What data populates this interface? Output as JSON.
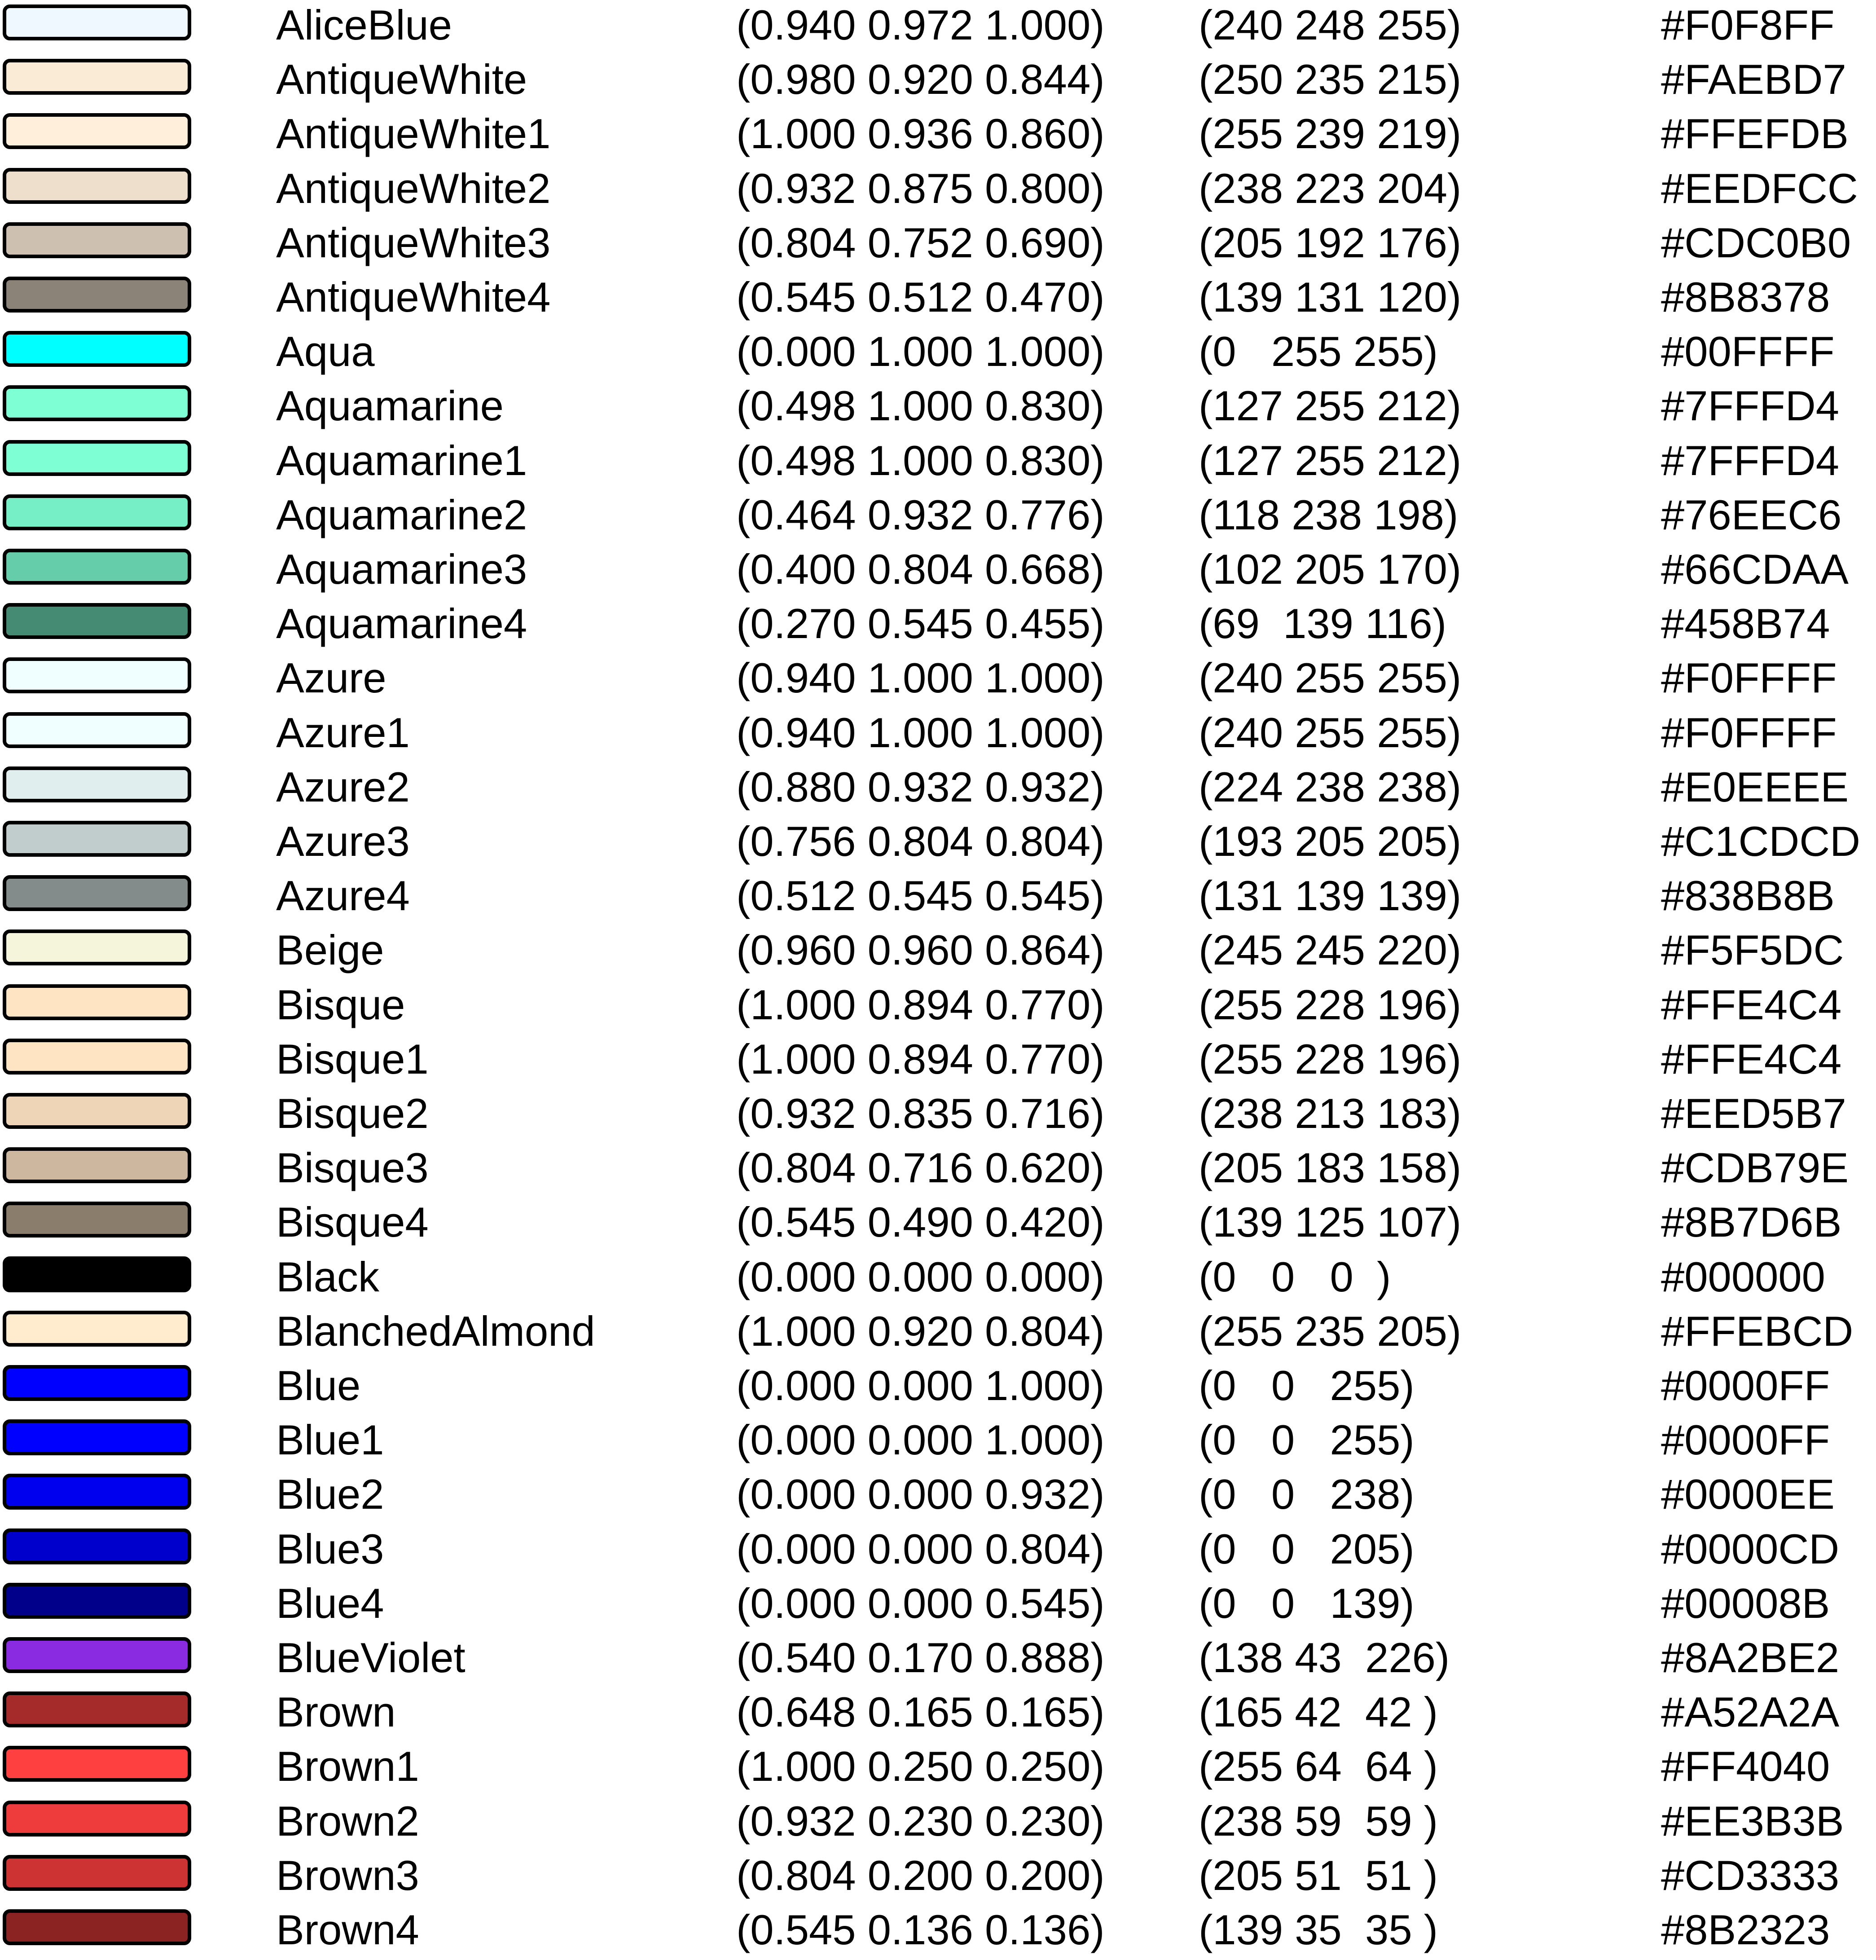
{
  "colors": [
    {
      "name": "AliceBlue",
      "float_rgb": "(0.940 0.972 1.000)",
      "int_rgb": "(240 248 255)",
      "hex": "#F0F8FF"
    },
    {
      "name": "AntiqueWhite",
      "float_rgb": "(0.980 0.920 0.844)",
      "int_rgb": "(250 235 215)",
      "hex": "#FAEBD7"
    },
    {
      "name": "AntiqueWhite1",
      "float_rgb": "(1.000 0.936 0.860)",
      "int_rgb": "(255 239 219)",
      "hex": "#FFEFDB"
    },
    {
      "name": "AntiqueWhite2",
      "float_rgb": "(0.932 0.875 0.800)",
      "int_rgb": "(238 223 204)",
      "hex": "#EEDFCC"
    },
    {
      "name": "AntiqueWhite3",
      "float_rgb": "(0.804 0.752 0.690)",
      "int_rgb": "(205 192 176)",
      "hex": "#CDC0B0"
    },
    {
      "name": "AntiqueWhite4",
      "float_rgb": "(0.545 0.512 0.470)",
      "int_rgb": "(139 131 120)",
      "hex": "#8B8378"
    },
    {
      "name": "Aqua",
      "float_rgb": "(0.000 1.000 1.000)",
      "int_rgb": "(0   255 255)",
      "hex": "#00FFFF"
    },
    {
      "name": "Aquamarine",
      "float_rgb": "(0.498 1.000 0.830)",
      "int_rgb": "(127 255 212)",
      "hex": "#7FFFD4"
    },
    {
      "name": "Aquamarine1",
      "float_rgb": "(0.498 1.000 0.830)",
      "int_rgb": "(127 255 212)",
      "hex": "#7FFFD4"
    },
    {
      "name": "Aquamarine2",
      "float_rgb": "(0.464 0.932 0.776)",
      "int_rgb": "(118 238 198)",
      "hex": "#76EEC6"
    },
    {
      "name": "Aquamarine3",
      "float_rgb": "(0.400 0.804 0.668)",
      "int_rgb": "(102 205 170)",
      "hex": "#66CDAA"
    },
    {
      "name": "Aquamarine4",
      "float_rgb": "(0.270 0.545 0.455)",
      "int_rgb": "(69  139 116)",
      "hex": "#458B74"
    },
    {
      "name": "Azure",
      "float_rgb": "(0.940 1.000 1.000)",
      "int_rgb": "(240 255 255)",
      "hex": "#F0FFFF"
    },
    {
      "name": "Azure1",
      "float_rgb": "(0.940 1.000 1.000)",
      "int_rgb": "(240 255 255)",
      "hex": "#F0FFFF"
    },
    {
      "name": "Azure2",
      "float_rgb": "(0.880 0.932 0.932)",
      "int_rgb": "(224 238 238)",
      "hex": "#E0EEEE"
    },
    {
      "name": "Azure3",
      "float_rgb": "(0.756 0.804 0.804)",
      "int_rgb": "(193 205 205)",
      "hex": "#C1CDCD"
    },
    {
      "name": "Azure4",
      "float_rgb": "(0.512 0.545 0.545)",
      "int_rgb": "(131 139 139)",
      "hex": "#838B8B"
    },
    {
      "name": "Beige",
      "float_rgb": "(0.960 0.960 0.864)",
      "int_rgb": "(245 245 220)",
      "hex": "#F5F5DC"
    },
    {
      "name": "Bisque",
      "float_rgb": "(1.000 0.894 0.770)",
      "int_rgb": "(255 228 196)",
      "hex": "#FFE4C4"
    },
    {
      "name": "Bisque1",
      "float_rgb": "(1.000 0.894 0.770)",
      "int_rgb": "(255 228 196)",
      "hex": "#FFE4C4"
    },
    {
      "name": "Bisque2",
      "float_rgb": "(0.932 0.835 0.716)",
      "int_rgb": "(238 213 183)",
      "hex": "#EED5B7"
    },
    {
      "name": "Bisque3",
      "float_rgb": "(0.804 0.716 0.620)",
      "int_rgb": "(205 183 158)",
      "hex": "#CDB79E"
    },
    {
      "name": "Bisque4",
      "float_rgb": "(0.545 0.490 0.420)",
      "int_rgb": "(139 125 107)",
      "hex": "#8B7D6B"
    },
    {
      "name": "Black",
      "float_rgb": "(0.000 0.000 0.000)",
      "int_rgb": "(0   0   0  )",
      "hex": "#000000"
    },
    {
      "name": "BlanchedAlmond",
      "float_rgb": "(1.000 0.920 0.804)",
      "int_rgb": "(255 235 205)",
      "hex": "#FFEBCD"
    },
    {
      "name": "Blue",
      "float_rgb": "(0.000 0.000 1.000)",
      "int_rgb": "(0   0   255)",
      "hex": "#0000FF"
    },
    {
      "name": "Blue1",
      "float_rgb": "(0.000 0.000 1.000)",
      "int_rgb": "(0   0   255)",
      "hex": "#0000FF"
    },
    {
      "name": "Blue2",
      "float_rgb": "(0.000 0.000 0.932)",
      "int_rgb": "(0   0   238)",
      "hex": "#0000EE"
    },
    {
      "name": "Blue3",
      "float_rgb": "(0.000 0.000 0.804)",
      "int_rgb": "(0   0   205)",
      "hex": "#0000CD"
    },
    {
      "name": "Blue4",
      "float_rgb": "(0.000 0.000 0.545)",
      "int_rgb": "(0   0   139)",
      "hex": "#00008B"
    },
    {
      "name": "BlueViolet",
      "float_rgb": "(0.540 0.170 0.888)",
      "int_rgb": "(138 43  226)",
      "hex": "#8A2BE2"
    },
    {
      "name": "Brown",
      "float_rgb": "(0.648 0.165 0.165)",
      "int_rgb": "(165 42  42 )",
      "hex": "#A52A2A"
    },
    {
      "name": "Brown1",
      "float_rgb": "(1.000 0.250 0.250)",
      "int_rgb": "(255 64  64 )",
      "hex": "#FF4040"
    },
    {
      "name": "Brown2",
      "float_rgb": "(0.932 0.230 0.230)",
      "int_rgb": "(238 59  59 )",
      "hex": "#EE3B3B"
    },
    {
      "name": "Brown3",
      "float_rgb": "(0.804 0.200 0.200)",
      "int_rgb": "(205 51  51 )",
      "hex": "#CD3333"
    },
    {
      "name": "Brown4",
      "float_rgb": "(0.545 0.136 0.136)",
      "int_rgb": "(139 35  35 )",
      "hex": "#8B2323"
    }
  ]
}
